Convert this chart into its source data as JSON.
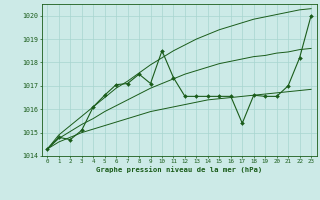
{
  "hours": [
    0,
    1,
    2,
    3,
    4,
    5,
    6,
    7,
    8,
    9,
    10,
    11,
    12,
    13,
    14,
    15,
    16,
    17,
    18,
    19,
    20,
    21,
    22,
    23
  ],
  "pressure_main": [
    1014.3,
    1014.8,
    1014.7,
    1015.1,
    1016.1,
    1016.6,
    1017.05,
    1017.1,
    1017.5,
    1017.1,
    1018.5,
    1017.35,
    1016.55,
    1016.55,
    1016.55,
    1016.55,
    1016.55,
    1015.4,
    1016.6,
    1016.55,
    1016.55,
    1017.0,
    1018.2,
    1020.0
  ],
  "pressure_upper": [
    1014.3,
    1014.9,
    1015.3,
    1015.7,
    1016.1,
    1016.5,
    1016.9,
    1017.2,
    1017.55,
    1017.9,
    1018.2,
    1018.5,
    1018.75,
    1019.0,
    1019.2,
    1019.4,
    1019.55,
    1019.7,
    1019.85,
    1019.95,
    1020.05,
    1020.15,
    1020.25,
    1020.3
  ],
  "pressure_lower": [
    1014.3,
    1014.6,
    1014.8,
    1015.0,
    1015.15,
    1015.3,
    1015.45,
    1015.6,
    1015.75,
    1015.9,
    1016.0,
    1016.1,
    1016.2,
    1016.3,
    1016.4,
    1016.45,
    1016.5,
    1016.55,
    1016.6,
    1016.65,
    1016.7,
    1016.75,
    1016.8,
    1016.85
  ],
  "pressure_mid": [
    1014.3,
    1014.75,
    1015.05,
    1015.35,
    1015.6,
    1015.9,
    1016.15,
    1016.4,
    1016.65,
    1016.9,
    1017.1,
    1017.3,
    1017.5,
    1017.65,
    1017.8,
    1017.95,
    1018.05,
    1018.15,
    1018.25,
    1018.3,
    1018.4,
    1018.45,
    1018.55,
    1018.6
  ],
  "ylim": [
    1014.0,
    1020.5
  ],
  "yticks": [
    1014,
    1015,
    1016,
    1017,
    1018,
    1019,
    1020
  ],
  "xlim": [
    -0.5,
    23.5
  ],
  "line_color": "#1a5c1a",
  "bg_color": "#cceae7",
  "grid_color": "#a8d5d0",
  "xlabel": "Graphe pression niveau de la mer (hPa)",
  "tick_color": "#1a5c1a"
}
